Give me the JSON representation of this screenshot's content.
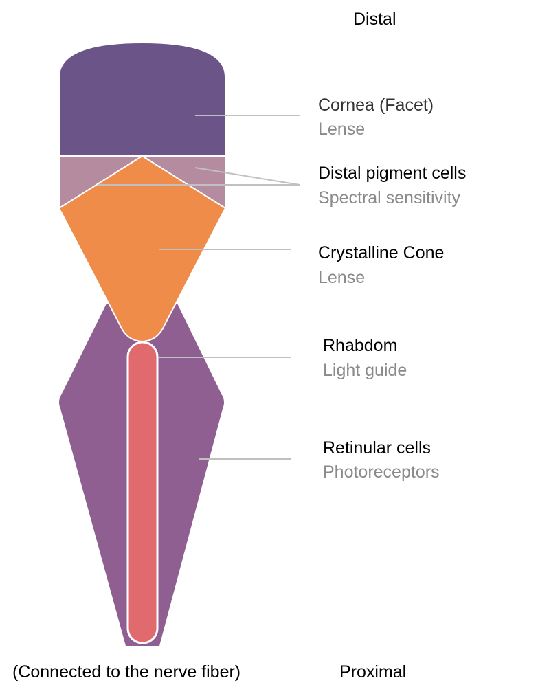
{
  "orientation": {
    "top": "Distal",
    "bottom": "Proximal"
  },
  "footnote": "(Connected to the nerve fiber)",
  "parts": [
    {
      "id": "cornea",
      "name": "Cornea (Facet)",
      "function": "Lense",
      "color": "#6b5588"
    },
    {
      "id": "distal-pigment",
      "name": "Distal pigment cells",
      "function": "Spectral sensitivity",
      "color": "#b58ba0"
    },
    {
      "id": "crystalline-cone",
      "name": "Crystalline Cone",
      "function": "Lense",
      "color": "#f08c4a"
    },
    {
      "id": "rhabdom",
      "name": "Rhabdom",
      "function": "Light guide",
      "color": "#e06a6e"
    },
    {
      "id": "retinular",
      "name": "Retinular cells",
      "function": "Photoreceptors",
      "color": "#8f5f92"
    }
  ],
  "colors": {
    "leader_line": "#c0c0c0",
    "outline": "#ffffff"
  }
}
